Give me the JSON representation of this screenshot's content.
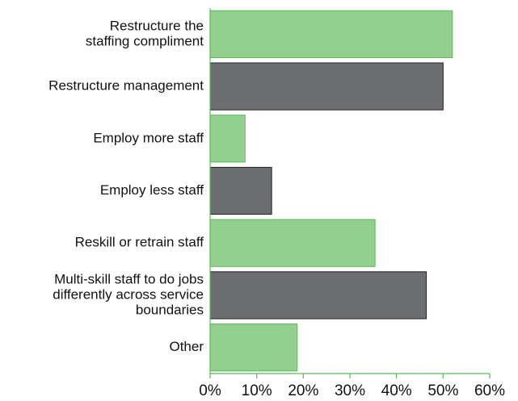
{
  "chart_data": {
    "type": "bar",
    "orientation": "horizontal",
    "categories": [
      [
        "Restructure the",
        "staffing compliment"
      ],
      [
        "Restructure management"
      ],
      [
        "Employ more staff"
      ],
      [
        "Employ less staff"
      ],
      [
        "Reskill or retrain staff"
      ],
      [
        "Multi-skill staff to do jobs",
        "differently across service",
        "boundaries"
      ],
      [
        "Other"
      ]
    ],
    "values": [
      52,
      50,
      7.5,
      13.2,
      35.4,
      46.4,
      18.7
    ],
    "colors": [
      "#93cf8f",
      "#6d6e71",
      "#93cf8f",
      "#6d6e71",
      "#93cf8f",
      "#6d6e71",
      "#93cf8f"
    ],
    "xlim": [
      0,
      60
    ],
    "xticks": [
      {
        "value": 0,
        "label": "0%"
      },
      {
        "value": 10,
        "label": "10%"
      },
      {
        "value": 20,
        "label": "20%"
      },
      {
        "value": 30,
        "label": "30%"
      },
      {
        "value": 40,
        "label": "40%"
      },
      {
        "value": 50,
        "label": "50%"
      },
      {
        "value": 60,
        "label": "60%"
      }
    ],
    "grid": false
  }
}
